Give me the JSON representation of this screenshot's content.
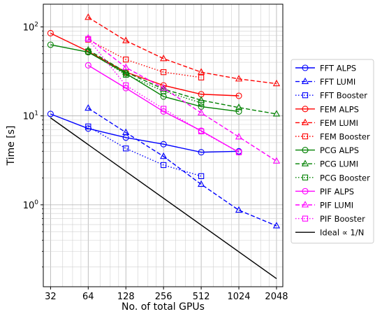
{
  "chart_data": {
    "type": "line",
    "title": "",
    "xlabel": "No. of total GPUs",
    "ylabel": "Time [s]",
    "xscale": "log2",
    "yscale": "log10",
    "xlim": [
      28,
      2300
    ],
    "ylim": [
      0.12,
      180
    ],
    "grid": true,
    "legend_position": "right",
    "x_ticks": [
      32,
      64,
      128,
      256,
      512,
      1024,
      2048
    ],
    "x_tick_labels": [
      "32",
      "64",
      "128",
      "256",
      "512",
      "1024",
      "2048"
    ],
    "y_ticks": [
      1,
      10,
      100
    ],
    "y_tick_labels": [
      "10",
      "10",
      "10"
    ],
    "y_tick_exponents": [
      "0",
      "1",
      "2"
    ],
    "series": [
      {
        "name": "FFT ALPS",
        "color": "#0000ff",
        "dash": "solid",
        "marker": "circle",
        "x": [
          32,
          64,
          128,
          256,
          512,
          1024
        ],
        "y": [
          10.5,
          7.2,
          5.7,
          4.8,
          3.9,
          4.0
        ]
      },
      {
        "name": "FFT LUMI",
        "color": "#0000ff",
        "dash": "dashed",
        "marker": "triangle",
        "x": [
          64,
          128,
          256,
          512,
          1024,
          2048
        ],
        "y": [
          12.2,
          6.5,
          3.5,
          1.7,
          0.87,
          0.58
        ]
      },
      {
        "name": "FFT Booster",
        "color": "#0000ff",
        "dash": "dotted",
        "marker": "square",
        "x": [
          64,
          128,
          256,
          512
        ],
        "y": [
          7.6,
          4.3,
          2.8,
          2.1
        ]
      },
      {
        "name": "FEM ALPS",
        "color": "#ff0000",
        "dash": "solid",
        "marker": "circle",
        "x": [
          32,
          64,
          128,
          256,
          512,
          1024
        ],
        "y": [
          85,
          53,
          31,
          22,
          17.5,
          16.8
        ]
      },
      {
        "name": "FEM LUMI",
        "color": "#ff0000",
        "dash": "dashed",
        "marker": "triangle",
        "x": [
          64,
          128,
          256,
          512,
          1024,
          2048
        ],
        "y": [
          128,
          70,
          44,
          31,
          26,
          23
        ]
      },
      {
        "name": "FEM Booster",
        "color": "#ff0000",
        "dash": "dotted",
        "marker": "square",
        "x": [
          64,
          128,
          256,
          512
        ],
        "y": [
          72,
          43,
          31,
          27
        ]
      },
      {
        "name": "PCG ALPS",
        "color": "#008000",
        "dash": "solid",
        "marker": "circle",
        "x": [
          32,
          64,
          128,
          256,
          512,
          1024
        ],
        "y": [
          63,
          52,
          30,
          16.5,
          12.7,
          11.2
        ]
      },
      {
        "name": "PCG LUMI",
        "color": "#008000",
        "dash": "dashed",
        "marker": "triangle",
        "x": [
          64,
          128,
          256,
          512,
          1024,
          2048
        ],
        "y": [
          55,
          31,
          20,
          15,
          12.4,
          10.5
        ]
      },
      {
        "name": "PCG Booster",
        "color": "#008000",
        "dash": "dotted",
        "marker": "square",
        "x": [
          64,
          128,
          256,
          512
        ],
        "y": [
          53,
          29,
          19,
          14
        ]
      },
      {
        "name": "PIF ALPS",
        "color": "#ff00ff",
        "dash": "solid",
        "marker": "circle",
        "x": [
          64,
          128,
          256,
          512,
          1024
        ],
        "y": [
          37,
          20.5,
          11.2,
          6.8,
          3.9
        ]
      },
      {
        "name": "PIF LUMI",
        "color": "#ff00ff",
        "dash": "dashed",
        "marker": "triangle",
        "x": [
          64,
          128,
          256,
          512,
          1024,
          2048
        ],
        "y": [
          75,
          35,
          20.5,
          10.8,
          5.8,
          3.1
        ]
      },
      {
        "name": "PIF Booster",
        "color": "#ff00ff",
        "dash": "dotted",
        "marker": "square",
        "x": [
          64,
          128,
          256,
          512,
          1024
        ],
        "y": [
          73,
          22,
          12,
          6.7,
          3.9
        ]
      },
      {
        "name": "Ideal ∝ 1/N",
        "color": "#000000",
        "dash": "solid",
        "marker": "none",
        "x": [
          32,
          2048
        ],
        "y": [
          9.5,
          0.148
        ]
      }
    ]
  }
}
